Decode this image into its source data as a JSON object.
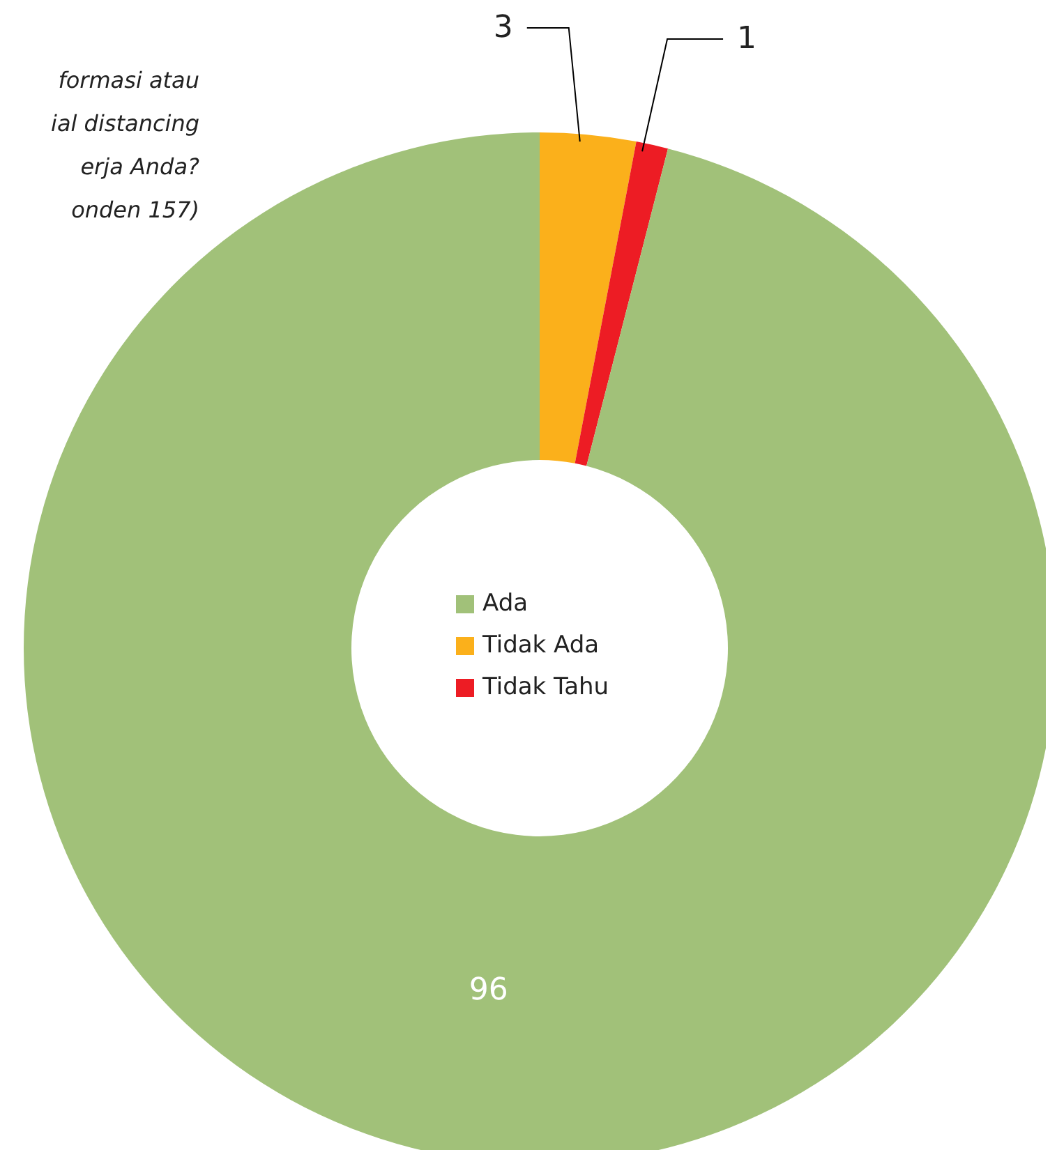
{
  "chart_data": {
    "type": "donut",
    "title": "formasi atau\nial distancing\nerja Anda?\nonden 157)",
    "categories": [
      "Ada",
      "Tidak Ada",
      "Tidak Tahu"
    ],
    "values": [
      96,
      3,
      1
    ],
    "colors": [
      "#a1c179",
      "#fbb01b",
      "#ed1c24"
    ],
    "data_labels": true,
    "legend": "center"
  }
}
